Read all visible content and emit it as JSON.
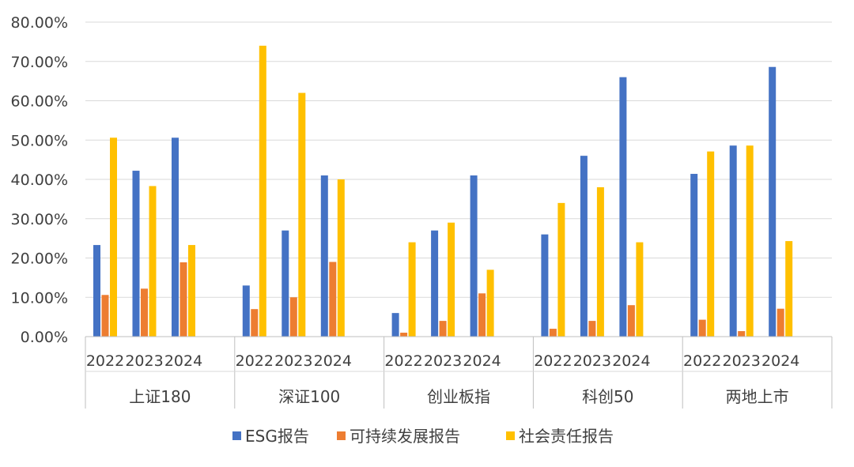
{
  "chart_data": {
    "type": "bar",
    "title": "",
    "xlabel": "",
    "ylabel": "",
    "ylim": [
      0,
      80
    ],
    "y_ticks": [
      "0.00%",
      "10.00%",
      "20.00%",
      "30.00%",
      "40.00%",
      "50.00%",
      "60.00%",
      "70.00%",
      "80.00%"
    ],
    "grid": true,
    "legend_position": "bottom",
    "groups": [
      {
        "name": "上证180",
        "years": [
          "2022",
          "2023",
          "2024"
        ]
      },
      {
        "name": "深证100",
        "years": [
          "2022",
          "2023",
          "2024"
        ]
      },
      {
        "name": "创业板指",
        "years": [
          "2022",
          "2023",
          "2024"
        ]
      },
      {
        "name": "科创50",
        "years": [
          "2022",
          "2023",
          "2024"
        ]
      },
      {
        "name": "两地上市",
        "years": [
          "2022",
          "2023",
          "2024"
        ]
      }
    ],
    "series": [
      {
        "name": "ESG报告",
        "color": "#4472C4",
        "values": [
          23.3,
          42.2,
          50.6,
          13.0,
          27.0,
          41.0,
          6.0,
          27.0,
          41.0,
          26.0,
          46.0,
          66.0,
          41.4,
          48.6,
          68.6
        ]
      },
      {
        "name": "可持续发展报告",
        "color": "#ED7D31",
        "values": [
          10.6,
          12.2,
          18.9,
          7.0,
          10.0,
          19.0,
          1.0,
          4.0,
          11.0,
          2.0,
          4.0,
          8.0,
          4.3,
          1.4,
          7.1
        ]
      },
      {
        "name": "社会责任报告",
        "color": "#FFC000",
        "values": [
          50.6,
          38.3,
          23.3,
          74.0,
          62.0,
          40.0,
          24.0,
          29.0,
          17.0,
          34.0,
          38.0,
          24.0,
          47.1,
          48.6,
          24.3
        ]
      }
    ]
  }
}
